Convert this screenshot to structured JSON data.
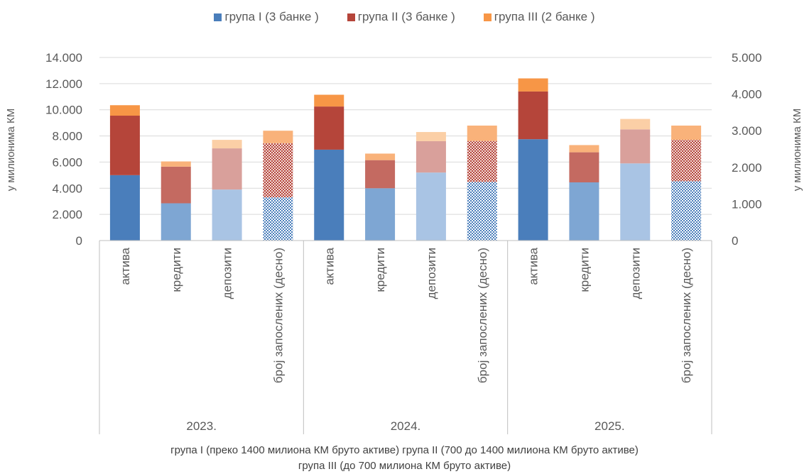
{
  "legend": {
    "items": [
      {
        "label": "група I (3 банке )",
        "color": "#4a7ebb"
      },
      {
        "label": "група II (3 банке )",
        "color": "#b5453a"
      },
      {
        "label": "група III (2 банке )",
        "color": "#f79646"
      }
    ]
  },
  "footnote": {
    "line1": "група I (преко 1400 милиона КМ бруто активе)   група II (700 до 1400 милиона КМ бруто активе)",
    "line2": "група III (до 700 милиона КМ бруто активе)"
  },
  "chart_data": {
    "type": "bar",
    "stacked": true,
    "left_axis": {
      "label": "у милионима КМ",
      "range": [
        0,
        14000
      ],
      "ticks": [
        "0",
        "2.000",
        "4.000",
        "6.000",
        "8.000",
        "10.000",
        "12.000",
        "14.000"
      ]
    },
    "right_axis": {
      "label": "у милионима КМ",
      "range": [
        0,
        5000
      ],
      "ticks": [
        "0",
        "1.000",
        "2.000",
        "3.000",
        "4.000",
        "5.000"
      ]
    },
    "groups": [
      "2023.",
      "2024.",
      "2025."
    ],
    "categories": [
      "актива",
      "кредити",
      "депозити",
      "број запослених (десно)"
    ],
    "series_names": [
      "група I (3 банке )",
      "група II (3 банке )",
      "група III (2 банке )"
    ],
    "bars": [
      {
        "group": "2023.",
        "category": "актива",
        "axis": "left",
        "values": [
          5000,
          4550,
          800
        ]
      },
      {
        "group": "2023.",
        "category": "кредити",
        "axis": "left",
        "values": [
          2850,
          2800,
          400
        ]
      },
      {
        "group": "2023.",
        "category": "депозити",
        "axis": "left",
        "values": [
          3900,
          3150,
          650
        ]
      },
      {
        "group": "2023.",
        "category": "број запослених (десно)",
        "axis": "right",
        "values": [
          1180,
          1480,
          340
        ]
      },
      {
        "group": "2024.",
        "category": "актива",
        "axis": "left",
        "values": [
          6950,
          3300,
          900
        ]
      },
      {
        "group": "2024.",
        "category": "кредити",
        "axis": "left",
        "values": [
          4000,
          2150,
          500
        ]
      },
      {
        "group": "2024.",
        "category": "депозити",
        "axis": "left",
        "values": [
          5200,
          2400,
          700
        ]
      },
      {
        "group": "2024.",
        "category": "број запослених (десно)",
        "axis": "right",
        "values": [
          1600,
          1120,
          420
        ]
      },
      {
        "group": "2025.",
        "category": "актива",
        "axis": "left",
        "values": [
          7750,
          3650,
          1000
        ]
      },
      {
        "group": "2025.",
        "category": "кредити",
        "axis": "left",
        "values": [
          4450,
          2300,
          550
        ]
      },
      {
        "group": "2025.",
        "category": "депозити",
        "axis": "left",
        "values": [
          5900,
          2600,
          800
        ]
      },
      {
        "group": "2025.",
        "category": "број запослених (десно)",
        "axis": "right",
        "values": [
          1620,
          1130,
          390
        ]
      }
    ],
    "colors": {
      "grupa1": [
        "#4a7ebb",
        "#7ea6d3",
        "#a9c4e4",
        "#5b8fd0"
      ],
      "grupa2": [
        "#b5453a",
        "#c46a61",
        "#d9a09b",
        "#b5453a"
      ],
      "grupa3": [
        "#f79646",
        "#f9b27a",
        "#fbcfa6",
        "#f9b27a"
      ]
    },
    "grid": true,
    "legend_position": "top"
  }
}
